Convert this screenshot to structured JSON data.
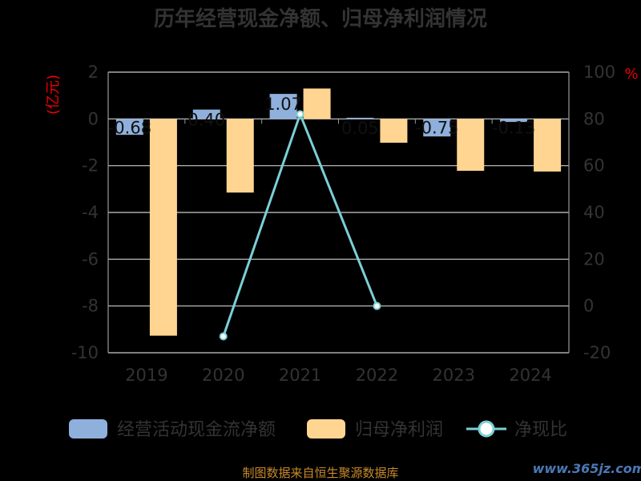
{
  "title": "历年经营现金净额、归母净利润情况",
  "left_unit": "(亿元)",
  "right_unit": "%",
  "footer": "制图数据来自恒生聚源数据库",
  "watermark": "www.365jz.com",
  "colors": {
    "cash": "#8fb0dc",
    "profit": "#ffd591",
    "ratio_line": "#7ccfd6",
    "grid": "#cccccc",
    "axis": "#999999"
  },
  "chart_data": {
    "type": "bar",
    "categories": [
      "2019",
      "2020",
      "2021",
      "2022",
      "2023",
      "2024"
    ],
    "series": [
      {
        "name": "经营活动现金流净额",
        "type": "bar",
        "axis": "left",
        "values": [
          -0.68,
          0.4,
          1.07,
          0.05,
          -0.75,
          -0.13
        ],
        "labels": [
          "-0.68",
          "0.40",
          "1.07",
          "0.05",
          "-0.75",
          "-0.13"
        ]
      },
      {
        "name": "归母净利润",
        "type": "bar",
        "axis": "left",
        "values": [
          -9.27,
          -3.15,
          1.3,
          -1.02,
          -2.22,
          -2.25
        ]
      },
      {
        "name": "净现比",
        "type": "line",
        "axis": "right",
        "values": [
          null,
          -13,
          82,
          0,
          null,
          null
        ]
      }
    ],
    "left_ticks": [
      "2",
      "0",
      "-2",
      "-4",
      "-6",
      "-8",
      "-10"
    ],
    "right_ticks": [
      "100",
      "80",
      "60",
      "40",
      "20",
      "0",
      "-20"
    ],
    "ylim_left": [
      -10,
      2
    ],
    "ylim_right": [
      -20,
      100
    ],
    "grid": true,
    "legend_position": "bottom"
  }
}
